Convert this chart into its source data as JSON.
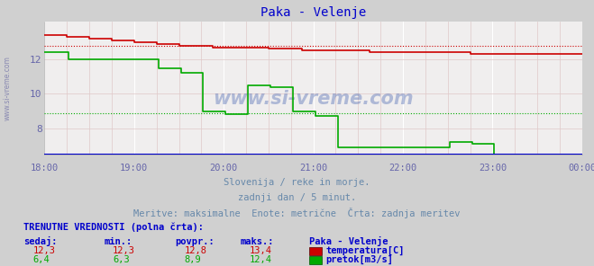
{
  "title": "Paka - Velenje",
  "background_color": "#d0d0d0",
  "plot_bg_color": "#f0eeee",
  "title_color": "#0000cc",
  "axis_label_color": "#6666aa",
  "text_color": "#6688aa",
  "temp_color": "#cc0000",
  "flow_color": "#00aa00",
  "blue_line_color": "#0000cc",
  "xlabel_times": [
    "18:00",
    "19:00",
    "20:00",
    "21:00",
    "22:00",
    "23:00",
    "00:00"
  ],
  "ylim_bottom": 6.5,
  "ylim_top": 14.2,
  "yticks": [
    8,
    10,
    12
  ],
  "xlim": [
    0,
    288
  ],
  "temp_avg_value": 12.8,
  "flow_avg_value": 8.9,
  "subtitle1": "Slovenija / reke in morje.",
  "subtitle2": "zadnji dan / 5 minut.",
  "subtitle3": "Meritve: maksimalne  Enote: metrične  Črta: zadnja meritev",
  "table_header": "TRENUTNE VREDNOSTI (polna črta):",
  "col_headers": [
    "sedaj:",
    "min.:",
    "povpr.:",
    "maks.:",
    "Paka - Velenje"
  ],
  "temp_row": [
    "12,3",
    "12,3",
    "12,8",
    "13,4"
  ],
  "temp_label": "temperatura[C]",
  "flow_row": [
    "6,4",
    "6,3",
    "8,9",
    "12,4"
  ],
  "flow_label": "pretok[m3/s]",
  "temp_data_x": [
    0,
    6,
    12,
    18,
    24,
    30,
    36,
    42,
    48,
    54,
    60,
    66,
    72,
    78,
    84,
    90,
    96,
    102,
    108,
    114,
    120,
    126,
    132,
    138,
    144,
    150,
    156,
    162,
    168,
    174,
    180,
    186,
    192,
    198,
    204,
    210,
    216,
    222,
    228,
    234,
    240,
    246,
    252,
    258,
    264,
    270,
    276,
    282,
    288
  ],
  "temp_data_y": [
    13.4,
    13.4,
    13.3,
    13.3,
    13.2,
    13.2,
    13.1,
    13.1,
    13.0,
    13.0,
    12.9,
    12.9,
    12.8,
    12.8,
    12.8,
    12.7,
    12.7,
    12.7,
    12.7,
    12.7,
    12.6,
    12.6,
    12.6,
    12.5,
    12.5,
    12.5,
    12.5,
    12.5,
    12.5,
    12.4,
    12.4,
    12.4,
    12.4,
    12.4,
    12.4,
    12.4,
    12.4,
    12.4,
    12.3,
    12.3,
    12.3,
    12.3,
    12.3,
    12.3,
    12.3,
    12.3,
    12.3,
    12.3,
    12.3
  ],
  "flow_data_x": [
    0,
    12,
    13,
    60,
    61,
    72,
    73,
    84,
    85,
    96,
    97,
    108,
    109,
    120,
    121,
    132,
    133,
    144,
    145,
    156,
    157,
    168,
    169,
    180,
    181,
    204,
    205,
    216,
    217,
    228,
    229,
    240,
    241,
    252,
    253,
    264,
    265,
    276,
    277,
    288
  ],
  "flow_data_y": [
    12.4,
    12.4,
    12.0,
    12.0,
    11.5,
    11.5,
    11.2,
    11.2,
    9.0,
    9.0,
    8.8,
    8.8,
    10.5,
    10.5,
    10.4,
    10.4,
    9.0,
    9.0,
    8.7,
    8.7,
    6.9,
    6.9,
    6.9,
    6.9,
    6.9,
    6.9,
    6.9,
    6.9,
    7.2,
    7.2,
    7.1,
    7.1,
    6.5,
    6.5,
    6.4,
    6.4,
    6.4,
    6.4,
    6.4,
    6.4
  ]
}
